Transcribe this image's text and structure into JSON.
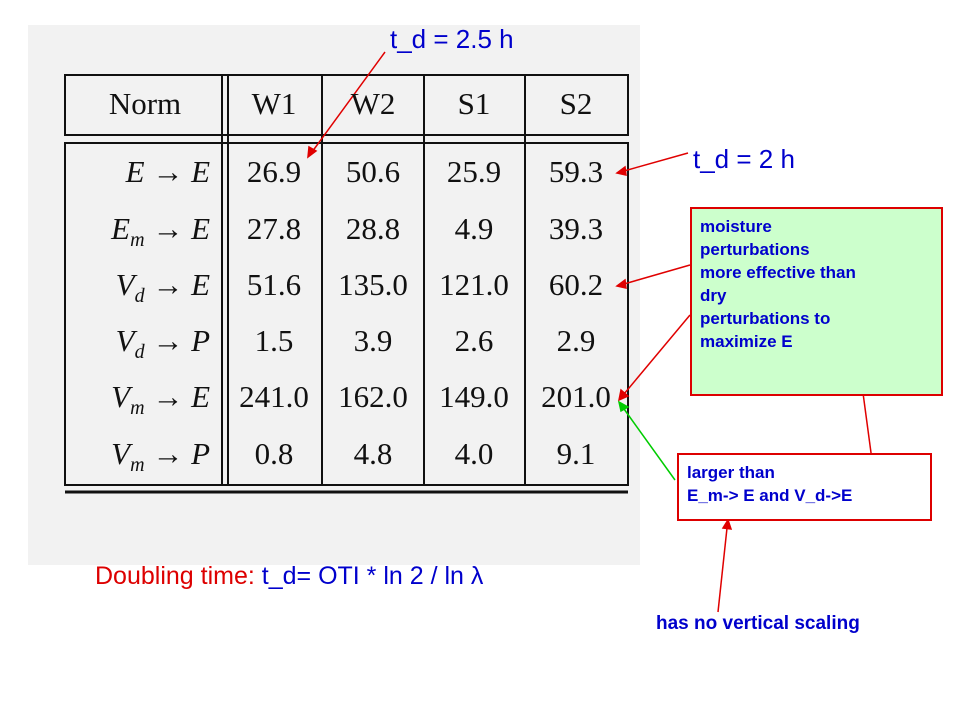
{
  "annotations": {
    "td_25": "t_d = 2.5 h",
    "td_2": "t_d = 2 h",
    "moisture_box": [
      "moisture",
      "perturbations",
      "more effective than",
      "dry",
      "perturbations to",
      "maximize E"
    ],
    "larger_box": [
      "larger than",
      "E_m-> E and V_d->E"
    ],
    "no_scaling": "has no vertical scaling"
  },
  "formula": {
    "label": "Doubling time:",
    "expr": "t_d= OTI * ln 2 / ln λ"
  },
  "table": {
    "header": [
      "Norm",
      "W1",
      "W2",
      "S1",
      "S2"
    ],
    "rows": [
      {
        "norm": {
          "from": "E",
          "arrow": "→",
          "to": "E"
        },
        "cells": [
          "26.9",
          "50.6",
          "25.9",
          "59.3"
        ]
      },
      {
        "norm": {
          "from": "E",
          "sub": "m",
          "arrow": "→",
          "to": "E"
        },
        "cells": [
          "27.8",
          "28.8",
          "4.9",
          "39.3"
        ]
      },
      {
        "norm": {
          "from": "V",
          "sub": "d",
          "arrow": "→",
          "to": "E"
        },
        "cells": [
          "51.6",
          "135.0",
          "121.0",
          "60.2"
        ]
      },
      {
        "norm": {
          "from": "V",
          "sub": "d",
          "arrow": "→",
          "to": "P"
        },
        "cells": [
          "1.5",
          "3.9",
          "2.6",
          "2.9"
        ]
      },
      {
        "norm": {
          "from": "V",
          "sub": "m",
          "arrow": "→",
          "to": "E"
        },
        "cells": [
          "241.0",
          "162.0",
          "149.0",
          "201.0"
        ]
      },
      {
        "norm": {
          "from": "V",
          "sub": "m",
          "arrow": "→",
          "to": "P"
        },
        "cells": [
          "0.8",
          "4.8",
          "4.0",
          "9.1"
        ]
      }
    ]
  }
}
